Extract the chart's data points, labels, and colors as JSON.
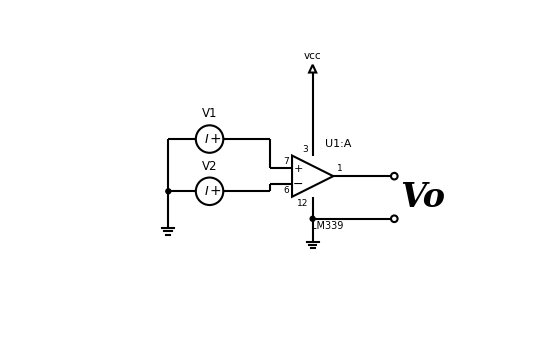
{
  "bg_color": "#ffffff",
  "line_color": "#000000",
  "lw": 1.5,
  "vcc_label": "vcc",
  "u1a_label": "U1:A",
  "lm339_label": "LM339",
  "vo_label": "Vo",
  "v1_label": "V1",
  "v2_label": "V2",
  "pin3_label": "3",
  "pin7_label": "7",
  "pin6_label": "6",
  "pin1_label": "1",
  "pin12_label": "12",
  "figsize": [
    5.43,
    3.57
  ],
  "dpi": 100,
  "xlim": [
    0,
    10
  ],
  "ylim": [
    0,
    10
  ]
}
